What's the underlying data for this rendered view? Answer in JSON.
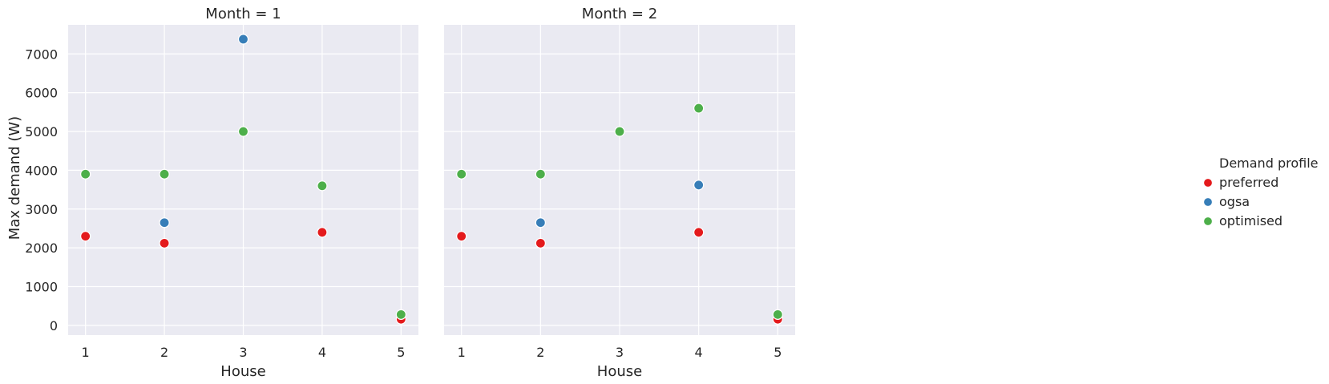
{
  "chart_data": {
    "type": "scatter",
    "ylabel": "Max demand (W)",
    "xlabel": "House",
    "ylim": [
      -250,
      7750
    ],
    "xlim": [
      0.78,
      5.22
    ],
    "x_ticks": [
      1,
      2,
      3,
      4,
      5
    ],
    "y_ticks": [
      0,
      1000,
      2000,
      3000,
      4000,
      5000,
      6000,
      7000
    ],
    "grid": true,
    "legend": {
      "title": "Demand profile",
      "placement": "right",
      "entries": [
        "preferred",
        "ogsa",
        "optimised"
      ]
    },
    "colors": {
      "preferred": "#e41a1c",
      "ogsa": "#377eb8",
      "optimised": "#4daf4a"
    },
    "panels": [
      {
        "title": "Month = 1",
        "series": [
          {
            "name": "preferred",
            "x": [
              1,
              2,
              4,
              5
            ],
            "y": [
              2300,
              2120,
              2400,
              160
            ]
          },
          {
            "name": "ogsa",
            "x": [
              2,
              3
            ],
            "y": [
              2650,
              7380
            ]
          },
          {
            "name": "optimised",
            "x": [
              1,
              2,
              3,
              4,
              5
            ],
            "y": [
              3900,
              3900,
              5000,
              3600,
              280
            ]
          }
        ]
      },
      {
        "title": "Month = 2",
        "series": [
          {
            "name": "preferred",
            "x": [
              1,
              2,
              4,
              5
            ],
            "y": [
              2300,
              2120,
              2400,
              160
            ]
          },
          {
            "name": "ogsa",
            "x": [
              2,
              4
            ],
            "y": [
              2650,
              3620
            ]
          },
          {
            "name": "optimised",
            "x": [
              1,
              2,
              3,
              4,
              5
            ],
            "y": [
              3900,
              3900,
              5000,
              5600,
              280
            ]
          }
        ]
      }
    ]
  }
}
